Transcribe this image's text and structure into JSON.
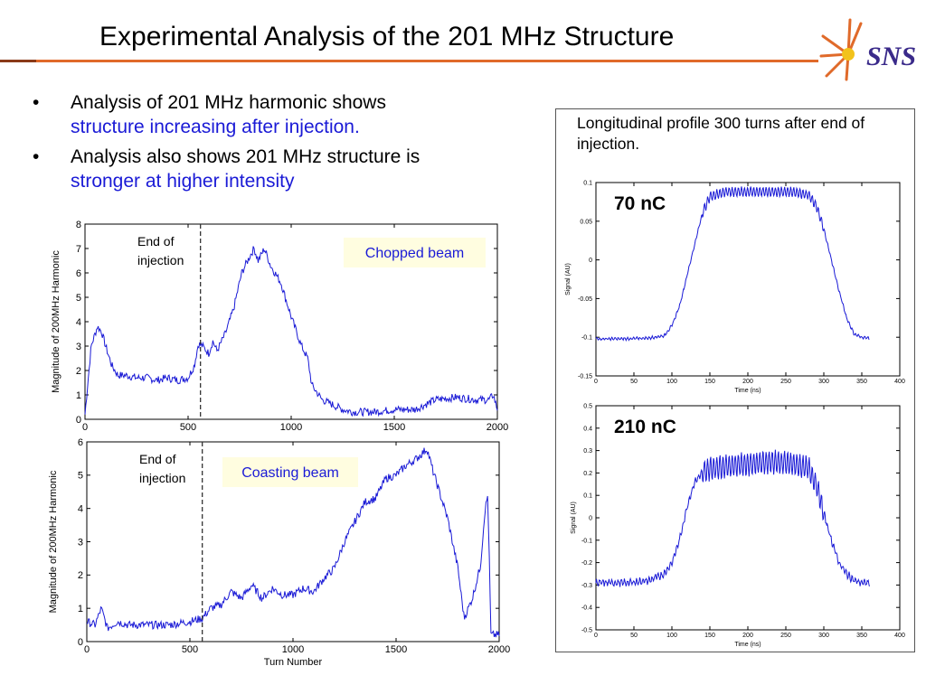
{
  "slide": {
    "title": "Experimental Analysis of the 201 MHz Structure",
    "logo_text": "SNS",
    "accent_color": "#e06a2a",
    "bullets": [
      {
        "marker": "•",
        "text": "Analysis of 201 MHz harmonic shows",
        "highlight": "structure increasing after injection",
        "tail": "."
      },
      {
        "marker": "•",
        "text": "Analysis also shows 201 MHz structure is",
        "highlight": "stronger at higher intensity",
        "tail": ""
      }
    ],
    "panel_caption": "Longitudinal profile 300 turns after end of injection."
  },
  "chart_data": [
    {
      "type": "line",
      "id": "chopped",
      "ylabel": "Magnitude of 200MHz Harmonic",
      "xlabel": "",
      "xlim": [
        0,
        2000
      ],
      "ylim": [
        0,
        8
      ],
      "x_ticks": [
        "0",
        "500",
        "1000",
        "1500",
        "2000"
      ],
      "y_ticks": [
        "0",
        "1",
        "2",
        "3",
        "4",
        "5",
        "6",
        "7",
        "8"
      ],
      "injection_end_x": 560,
      "annotations": {
        "injection": [
          "End of",
          "injection"
        ],
        "beam": "Chopped beam"
      },
      "series": [
        {
          "x": [
            0,
            30,
            60,
            80,
            100,
            130,
            160,
            200,
            250,
            300,
            350,
            400,
            450,
            500,
            530,
            550,
            570,
            600,
            620,
            640,
            680,
            720,
            760,
            800,
            820,
            840,
            870,
            900,
            950,
            1000,
            1050,
            1080,
            1100,
            1150,
            1200,
            1250,
            1300,
            1400,
            1500,
            1550,
            1600,
            1700,
            1800,
            1900,
            1960,
            1980,
            2000
          ],
          "y": [
            0.2,
            3.0,
            3.8,
            3.6,
            3.0,
            2.2,
            1.8,
            1.8,
            1.7,
            1.7,
            1.6,
            1.7,
            1.6,
            1.7,
            2.2,
            3.1,
            3.0,
            2.7,
            3.2,
            2.8,
            3.5,
            4.5,
            6.0,
            6.7,
            7.0,
            6.5,
            7.0,
            6.3,
            5.6,
            4.2,
            3.0,
            2.5,
            1.4,
            0.8,
            0.6,
            0.4,
            0.3,
            0.3,
            0.4,
            0.4,
            0.4,
            0.8,
            0.9,
            0.8,
            0.8,
            1.0,
            0.4
          ]
        }
      ]
    },
    {
      "type": "line",
      "id": "coasting",
      "ylabel": "Magnitude of 200MHz Harmonic",
      "xlabel": "Turn Number",
      "xlim": [
        0,
        2000
      ],
      "ylim": [
        0,
        6
      ],
      "x_ticks": [
        "0",
        "500",
        "1000",
        "1500",
        "2000"
      ],
      "y_ticks": [
        "0",
        "1",
        "2",
        "3",
        "4",
        "5",
        "6"
      ],
      "injection_end_x": 560,
      "annotations": {
        "injection": [
          "End of",
          "injection"
        ],
        "beam": "Coasting beam"
      },
      "series": [
        {
          "x": [
            0,
            40,
            70,
            100,
            150,
            200,
            300,
            400,
            500,
            560,
            600,
            650,
            700,
            750,
            800,
            850,
            900,
            950,
            1000,
            1050,
            1100,
            1150,
            1200,
            1250,
            1300,
            1350,
            1400,
            1450,
            1500,
            1550,
            1600,
            1650,
            1680,
            1700,
            1750,
            1800,
            1830,
            1870,
            1910,
            1930,
            1945,
            1960,
            2000
          ],
          "y": [
            0.6,
            0.5,
            1.0,
            0.4,
            0.6,
            0.5,
            0.5,
            0.5,
            0.6,
            0.7,
            1.0,
            1.1,
            1.5,
            1.3,
            1.7,
            1.3,
            1.6,
            1.4,
            1.4,
            1.6,
            1.5,
            1.9,
            2.2,
            3.0,
            3.6,
            4.2,
            4.3,
            4.9,
            5.0,
            5.3,
            5.5,
            5.8,
            5.1,
            4.7,
            3.7,
            2.2,
            0.7,
            1.3,
            2.3,
            3.9,
            4.4,
            0.2,
            0.2
          ]
        }
      ]
    },
    {
      "type": "line",
      "id": "profile-70",
      "ylabel": "Signal (AU)",
      "xlabel": "Time (ns)",
      "label": "70 nC",
      "xlim": [
        0,
        400
      ],
      "ylim": [
        -0.15,
        0.1
      ],
      "x_ticks": [
        "0",
        "50",
        "100",
        "150",
        "200",
        "250",
        "300",
        "350",
        "400"
      ],
      "y_ticks": [
        "-0.15",
        "-0.1",
        "-0.05",
        "0",
        "0.05",
        "0.1"
      ],
      "ripple_amplitude": 0.006,
      "series": [
        {
          "x": [
            0,
            40,
            70,
            90,
            100,
            110,
            120,
            130,
            140,
            150,
            170,
            200,
            230,
            260,
            280,
            290,
            300,
            310,
            320,
            330,
            340,
            350,
            360
          ],
          "y": [
            -0.102,
            -0.102,
            -0.101,
            -0.098,
            -0.085,
            -0.06,
            -0.02,
            0.02,
            0.06,
            0.082,
            0.088,
            0.088,
            0.088,
            0.088,
            0.084,
            0.07,
            0.04,
            0.0,
            -0.04,
            -0.075,
            -0.096,
            -0.1,
            -0.101
          ]
        }
      ]
    },
    {
      "type": "line",
      "id": "profile-210",
      "ylabel": "Signal (AU)",
      "xlabel": "Time (ns)",
      "label": "210 nC",
      "xlim": [
        0,
        400
      ],
      "ylim": [
        -0.5,
        0.5
      ],
      "x_ticks": [
        "0",
        "50",
        "100",
        "150",
        "200",
        "250",
        "300",
        "350",
        "400"
      ],
      "y_ticks": [
        "-0.5",
        "-0.4",
        "-0.3",
        "-0.2",
        "-0.1",
        "0",
        "0.1",
        "0.2",
        "0.3",
        "0.4",
        "0.5"
      ],
      "ripple_amplitude": 0.05,
      "series": [
        {
          "x": [
            0,
            40,
            70,
            90,
            100,
            110,
            120,
            130,
            140,
            150,
            170,
            200,
            230,
            260,
            280,
            290,
            300,
            310,
            320,
            330,
            340,
            350,
            360
          ],
          "y": [
            -0.29,
            -0.29,
            -0.28,
            -0.25,
            -0.2,
            -0.1,
            0.05,
            0.16,
            0.2,
            0.22,
            0.23,
            0.24,
            0.25,
            0.24,
            0.22,
            0.15,
            0.02,
            -0.1,
            -0.2,
            -0.25,
            -0.28,
            -0.29,
            -0.29
          ]
        }
      ]
    }
  ]
}
